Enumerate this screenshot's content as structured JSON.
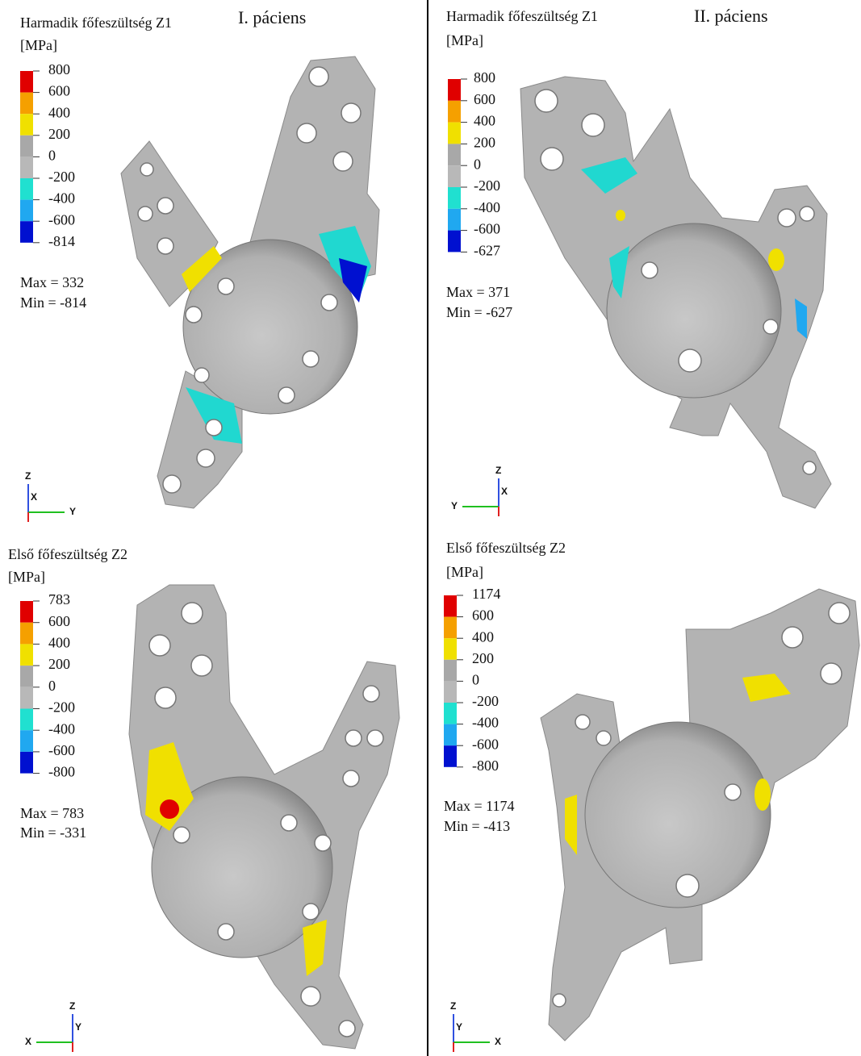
{
  "panels": [
    {
      "title": "Harmadik főfeszültség Z1",
      "unit": "[MPa]",
      "patient": "I. páciens",
      "legend": [
        "800",
        "600",
        "400",
        "200",
        "0",
        "-200",
        "-400",
        "-600",
        "-814"
      ],
      "max": "Max = 332",
      "min": "Min = -814",
      "axes": [
        "Z",
        "X",
        "Y"
      ]
    },
    {
      "title": "Harmadik főfeszültség Z1",
      "unit": "[MPa]",
      "patient": "II. páciens",
      "legend": [
        "800",
        "600",
        "400",
        "200",
        "0",
        "-200",
        "-400",
        "-600",
        "-627"
      ],
      "max": "Max = 371",
      "min": "Min = -627",
      "axes": [
        "Z",
        "Y",
        "X"
      ]
    },
    {
      "title": "Első főfeszültség Z2",
      "unit": "[MPa]",
      "legend": [
        "783",
        "600",
        "400",
        "200",
        "0",
        "-200",
        "-400",
        "-600",
        "-800"
      ],
      "max": "Max = 783",
      "min": "Min = -331",
      "axes": [
        "Z",
        "X",
        "Y"
      ]
    },
    {
      "title": "Első főfeszültség Z2",
      "unit": "[MPa]",
      "legend": [
        "1174",
        "600",
        "400",
        "200",
        "0",
        "-200",
        "-400",
        "-600",
        "-800"
      ],
      "max": "Max = 1174",
      "min": "Min = -413",
      "axes": [
        "Z",
        "Y",
        "X"
      ]
    }
  ]
}
